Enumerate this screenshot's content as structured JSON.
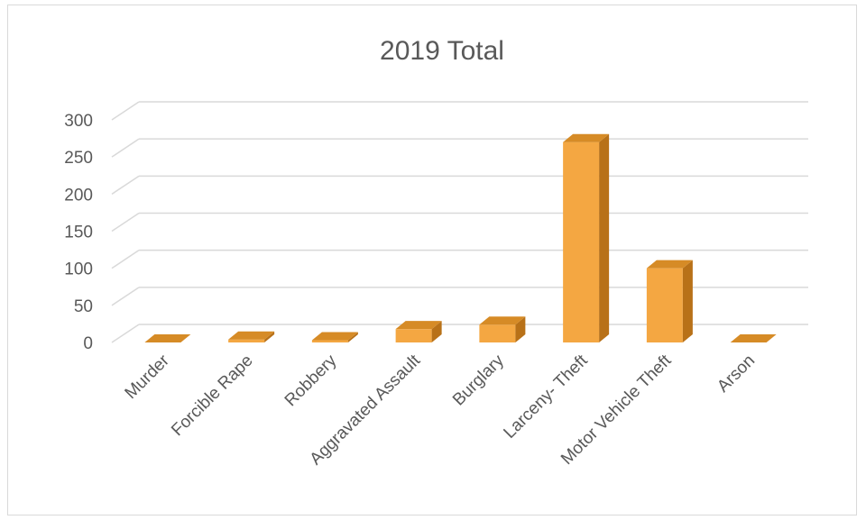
{
  "chart_data": {
    "type": "bar",
    "title": "2019 Total",
    "categories": [
      "Murder",
      "Forcible Rape",
      "Robbery",
      "Aggravated Assault",
      "Burglary",
      "Larceny- Theft",
      "Motor Vehicle Theft",
      "Arson"
    ],
    "series": [
      {
        "values": [
          0,
          4,
          3,
          18,
          24,
          270,
          100,
          0
        ]
      }
    ],
    "yticks": [
      "0",
      "50",
      "100",
      "150",
      "200",
      "250",
      "300"
    ],
    "ylim": [
      0,
      300
    ],
    "xlabel": "",
    "ylabel": "",
    "grid": true,
    "legend": "none",
    "style": "3d-clustered-column",
    "colors": {
      "front": "#f4a742",
      "top": "#d68b26",
      "side": "#b87118",
      "grid": "#d9d9d9",
      "text": "#595959"
    }
  }
}
